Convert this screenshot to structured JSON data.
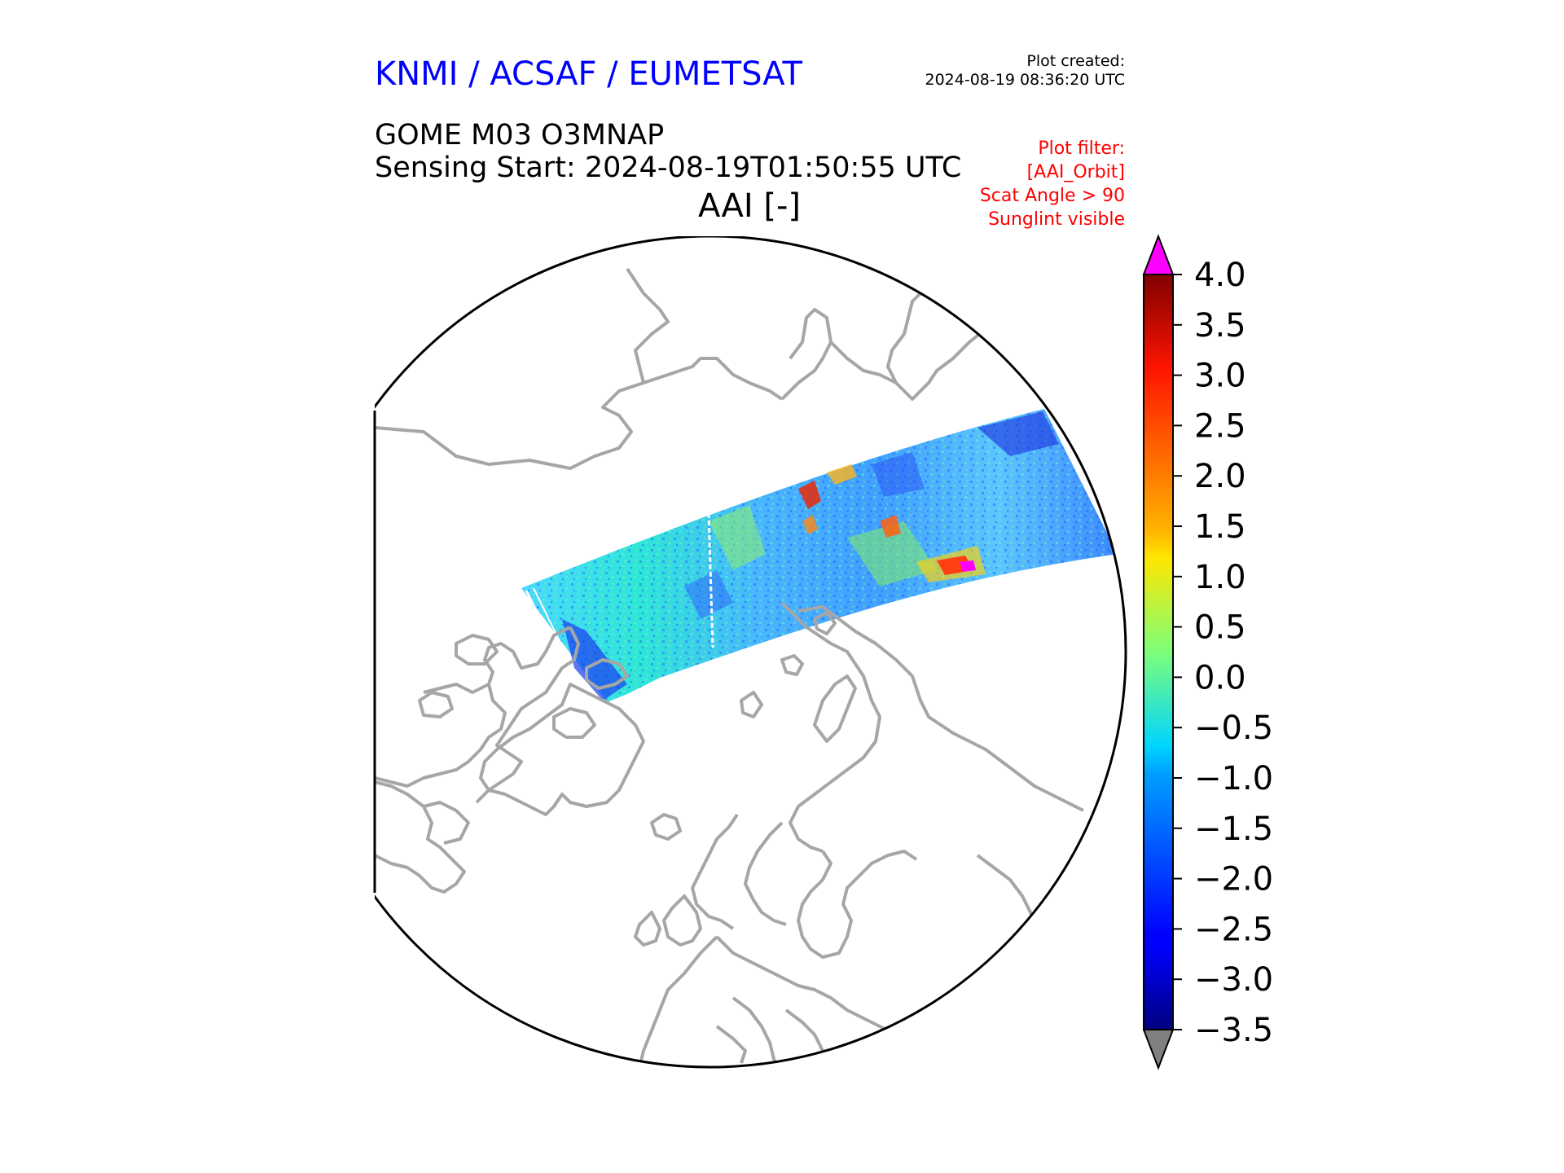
{
  "header": {
    "organization": "KNMI / ACSAF / EUMETSAT",
    "plot_created_label": "Plot created:",
    "plot_created_time": "2024-08-19 08:36:20 UTC",
    "product": "GOME M03 O3MNAP",
    "sensing_start": "Sensing Start: 2024-08-19T01:50:55 UTC",
    "quantity": "AAI [-]",
    "filter_lines": [
      "Plot filter:",
      "[AAI_Orbit]",
      "Scat Angle > 90",
      "Sunglint visible"
    ]
  },
  "colors": {
    "organization": "#0000ff",
    "filter": "#ff0000",
    "coastline": "#a6a6a6",
    "over_color": "#ff00ff",
    "under_color": "#808080"
  },
  "colorbar": {
    "min": -3.5,
    "max": 4.0,
    "colormap": "jet",
    "extend": "both",
    "ticks": [
      "4.0",
      "3.5",
      "3.0",
      "2.5",
      "2.0",
      "1.5",
      "1.0",
      "0.5",
      "0.0",
      "−0.5",
      "−1.0",
      "−1.5",
      "−2.0",
      "−2.5",
      "−3.0",
      "−3.5"
    ]
  },
  "map": {
    "projection": "north polar stereographic",
    "features": [
      "coastlines",
      "satellite swath"
    ]
  }
}
